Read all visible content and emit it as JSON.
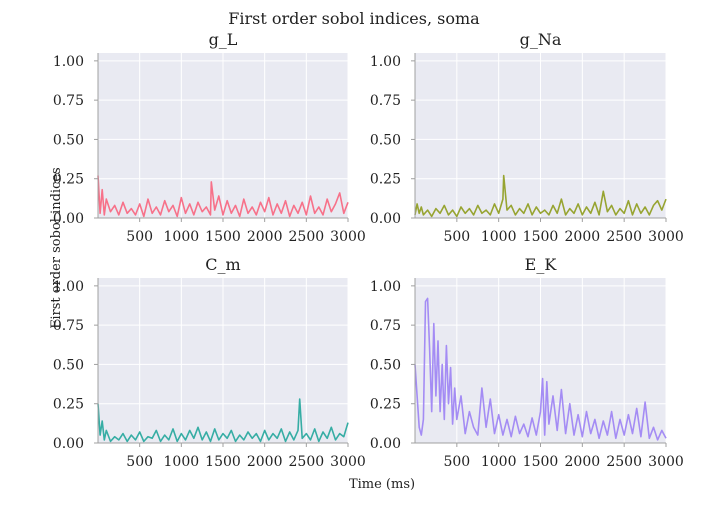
{
  "chart_data": {
    "type": "line",
    "title": "First order sobol indices, soma",
    "xlabel": "Time (ms)",
    "ylabel": "First order sobol indices",
    "xlim": [
      0,
      3000
    ],
    "ylim": [
      0,
      1.05
    ],
    "xticks": [
      500,
      1000,
      1500,
      2000,
      2500,
      3000
    ],
    "yticks": [
      0.0,
      0.25,
      0.5,
      0.75,
      1.0
    ],
    "xtick_labels": [
      "500",
      "1000",
      "1500",
      "2000",
      "2500",
      "3000"
    ],
    "ytick_labels": [
      "0.00",
      "0.25",
      "0.50",
      "0.75",
      "1.00"
    ],
    "grid": true,
    "panels": [
      {
        "title": "g_L",
        "color": "#f77189",
        "x": [
          0,
          25,
          50,
          75,
          100,
          150,
          200,
          250,
          300,
          350,
          400,
          450,
          500,
          550,
          600,
          650,
          700,
          750,
          800,
          850,
          900,
          950,
          1000,
          1050,
          1100,
          1150,
          1200,
          1250,
          1300,
          1350,
          1360,
          1400,
          1450,
          1500,
          1550,
          1600,
          1650,
          1700,
          1750,
          1800,
          1850,
          1900,
          1950,
          2000,
          2050,
          2100,
          2150,
          2200,
          2250,
          2300,
          2350,
          2400,
          2450,
          2500,
          2550,
          2600,
          2650,
          2700,
          2750,
          2800,
          2850,
          2900,
          2950,
          3000
        ],
        "values": [
          0.27,
          0.03,
          0.18,
          0.02,
          0.12,
          0.04,
          0.08,
          0.02,
          0.1,
          0.03,
          0.06,
          0.02,
          0.09,
          0.01,
          0.12,
          0.03,
          0.07,
          0.02,
          0.11,
          0.04,
          0.08,
          0.01,
          0.13,
          0.03,
          0.09,
          0.02,
          0.1,
          0.04,
          0.07,
          0.02,
          0.23,
          0.05,
          0.14,
          0.02,
          0.11,
          0.03,
          0.08,
          0.01,
          0.12,
          0.03,
          0.07,
          0.02,
          0.1,
          0.04,
          0.13,
          0.02,
          0.09,
          0.03,
          0.11,
          0.01,
          0.08,
          0.03,
          0.1,
          0.02,
          0.14,
          0.03,
          0.07,
          0.02,
          0.12,
          0.04,
          0.09,
          0.16,
          0.03,
          0.1
        ]
      },
      {
        "title": "g_Na",
        "color": "#97a431",
        "x": [
          0,
          25,
          50,
          75,
          100,
          150,
          200,
          250,
          300,
          350,
          400,
          450,
          500,
          550,
          600,
          650,
          700,
          750,
          800,
          850,
          900,
          950,
          1000,
          1050,
          1060,
          1100,
          1150,
          1200,
          1250,
          1300,
          1350,
          1400,
          1450,
          1500,
          1550,
          1600,
          1650,
          1700,
          1750,
          1800,
          1850,
          1900,
          1950,
          2000,
          2050,
          2100,
          2150,
          2200,
          2250,
          2300,
          2350,
          2400,
          2450,
          2500,
          2550,
          2600,
          2650,
          2700,
          2750,
          2800,
          2850,
          2900,
          2950,
          3000
        ],
        "values": [
          0.02,
          0.09,
          0.03,
          0.07,
          0.02,
          0.05,
          0.01,
          0.06,
          0.03,
          0.08,
          0.02,
          0.05,
          0.01,
          0.07,
          0.03,
          0.06,
          0.02,
          0.08,
          0.03,
          0.05,
          0.02,
          0.09,
          0.03,
          0.12,
          0.27,
          0.05,
          0.08,
          0.02,
          0.06,
          0.03,
          0.09,
          0.02,
          0.07,
          0.03,
          0.05,
          0.02,
          0.08,
          0.03,
          0.12,
          0.02,
          0.06,
          0.03,
          0.09,
          0.02,
          0.07,
          0.03,
          0.1,
          0.02,
          0.17,
          0.04,
          0.08,
          0.02,
          0.06,
          0.03,
          0.11,
          0.02,
          0.09,
          0.03,
          0.07,
          0.02,
          0.08,
          0.11,
          0.05,
          0.12
        ]
      },
      {
        "title": "C_m",
        "color": "#36ada4",
        "x": [
          0,
          25,
          50,
          75,
          100,
          150,
          200,
          250,
          300,
          350,
          400,
          450,
          500,
          550,
          600,
          650,
          700,
          750,
          800,
          850,
          900,
          950,
          1000,
          1050,
          1100,
          1150,
          1200,
          1250,
          1300,
          1350,
          1400,
          1450,
          1500,
          1550,
          1600,
          1650,
          1700,
          1750,
          1800,
          1850,
          1900,
          1950,
          2000,
          2050,
          2100,
          2150,
          2200,
          2250,
          2300,
          2350,
          2400,
          2420,
          2450,
          2500,
          2550,
          2600,
          2650,
          2700,
          2750,
          2800,
          2850,
          2900,
          2950,
          3000
        ],
        "values": [
          0.25,
          0.05,
          0.14,
          0.02,
          0.08,
          0.01,
          0.04,
          0.02,
          0.06,
          0.01,
          0.05,
          0.02,
          0.07,
          0.01,
          0.04,
          0.03,
          0.08,
          0.01,
          0.05,
          0.02,
          0.09,
          0.01,
          0.06,
          0.02,
          0.08,
          0.03,
          0.1,
          0.02,
          0.07,
          0.01,
          0.09,
          0.02,
          0.06,
          0.03,
          0.08,
          0.01,
          0.05,
          0.02,
          0.07,
          0.03,
          0.06,
          0.01,
          0.08,
          0.02,
          0.06,
          0.03,
          0.09,
          0.01,
          0.07,
          0.02,
          0.08,
          0.28,
          0.03,
          0.06,
          0.02,
          0.09,
          0.01,
          0.07,
          0.03,
          0.1,
          0.02,
          0.06,
          0.04,
          0.13
        ]
      },
      {
        "title": "E_K",
        "color": "#a48cf4",
        "x": [
          0,
          25,
          50,
          75,
          100,
          125,
          150,
          175,
          200,
          225,
          250,
          275,
          300,
          325,
          350,
          375,
          400,
          425,
          450,
          475,
          500,
          550,
          600,
          650,
          700,
          750,
          800,
          850,
          900,
          950,
          1000,
          1050,
          1100,
          1150,
          1200,
          1250,
          1300,
          1350,
          1400,
          1450,
          1500,
          1525,
          1550,
          1575,
          1600,
          1650,
          1700,
          1750,
          1800,
          1850,
          1900,
          1950,
          2000,
          2050,
          2100,
          2150,
          2200,
          2250,
          2300,
          2350,
          2400,
          2450,
          2500,
          2550,
          2600,
          2650,
          2700,
          2750,
          2800,
          2850,
          2900,
          2950,
          3000
        ],
        "values": [
          0.5,
          0.3,
          0.1,
          0.05,
          0.15,
          0.9,
          0.92,
          0.6,
          0.2,
          0.76,
          0.3,
          0.65,
          0.2,
          0.5,
          0.15,
          0.62,
          0.25,
          0.48,
          0.12,
          0.35,
          0.15,
          0.3,
          0.06,
          0.2,
          0.1,
          0.05,
          0.35,
          0.1,
          0.28,
          0.06,
          0.18,
          0.05,
          0.15,
          0.04,
          0.17,
          0.06,
          0.12,
          0.04,
          0.16,
          0.05,
          0.2,
          0.41,
          0.05,
          0.39,
          0.12,
          0.3,
          0.08,
          0.34,
          0.06,
          0.25,
          0.05,
          0.18,
          0.04,
          0.2,
          0.06,
          0.15,
          0.03,
          0.14,
          0.05,
          0.2,
          0.03,
          0.15,
          0.05,
          0.18,
          0.06,
          0.22,
          0.04,
          0.26,
          0.03,
          0.1,
          0.02,
          0.08,
          0.03
        ]
      }
    ]
  }
}
